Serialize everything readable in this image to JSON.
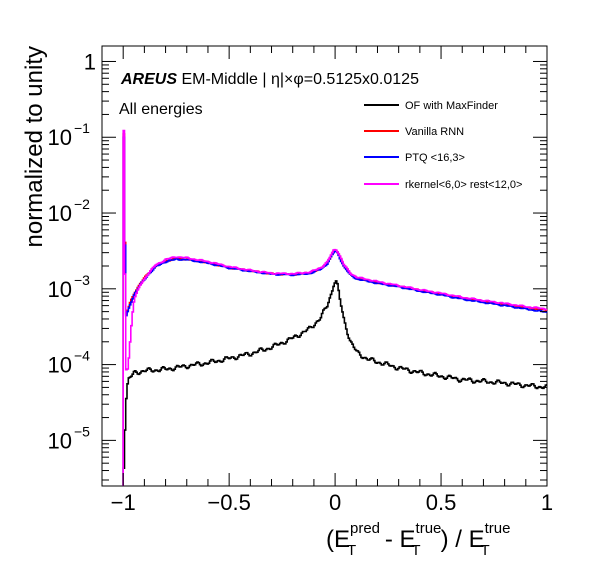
{
  "chart_data": {
    "type": "line",
    "subtype": "step-histogram",
    "title": "",
    "xlabel": "",
    "ylabel": "normalized to unity",
    "x_axis_title": {
      "open": "(E",
      "pred_sup": "pred",
      "t_sub_1": "T",
      "minus": " - E",
      "true_sup_1": "true",
      "t_sub_2": "T",
      "close_div": ") /  E",
      "true_sup_2": "true",
      "t_sub_3": "T"
    },
    "xlim": [
      -1.1,
      1.0
    ],
    "ylim": [
      2.5e-06,
      1.6
    ],
    "yscale": "log",
    "grid": false,
    "legend_position": "top-right",
    "x_ticks": [
      {
        "value": -1,
        "label": "−1"
      },
      {
        "value": -0.5,
        "label": "−0.5"
      },
      {
        "value": 0,
        "label": "0"
      },
      {
        "value": 0.5,
        "label": "0.5"
      },
      {
        "value": 1,
        "label": "1"
      }
    ],
    "y_ticks": [
      {
        "value": 1,
        "base": "1",
        "exp": ""
      },
      {
        "value": 0.1,
        "base": "10",
        "exp": "−1"
      },
      {
        "value": 0.01,
        "base": "10",
        "exp": "−2"
      },
      {
        "value": 0.001,
        "base": "10",
        "exp": "−3"
      },
      {
        "value": 0.0001,
        "base": "10",
        "exp": "−4"
      },
      {
        "value": 1e-05,
        "base": "10",
        "exp": "−5"
      }
    ],
    "annotations": {
      "brand": "AREUS",
      "region": " EM-Middle | η|×φ=0.5125x0.0125",
      "energies": "All energies"
    },
    "series": [
      {
        "name": "OF with MaxFinder",
        "color": "#000000",
        "points": [
          [
            -1.0,
            4.6e-06
          ],
          [
            -0.99,
            3.2e-05
          ],
          [
            -0.98,
            6.2e-05
          ],
          [
            -0.95,
            7.8e-05
          ],
          [
            -0.9,
            8.3e-05
          ],
          [
            -0.8,
            8.7e-05
          ],
          [
            -0.7,
            9.6e-05
          ],
          [
            -0.6,
            0.000106
          ],
          [
            -0.5,
            0.000121
          ],
          [
            -0.4,
            0.00014
          ],
          [
            -0.3,
            0.00017
          ],
          [
            -0.2,
            0.000225
          ],
          [
            -0.12,
            0.0003
          ],
          [
            -0.07,
            0.00042
          ],
          [
            -0.04,
            0.0006
          ],
          [
            -0.02,
            0.00088
          ],
          [
            -0.01,
            0.00115
          ],
          [
            0.0,
            0.0013
          ],
          [
            0.01,
            0.00105
          ],
          [
            0.02,
            0.00072
          ],
          [
            0.04,
            0.00038
          ],
          [
            0.07,
            0.0002
          ],
          [
            0.1,
            0.000145
          ],
          [
            0.15,
            0.000118
          ],
          [
            0.2,
            0.000108
          ],
          [
            0.3,
            9e-05
          ],
          [
            0.4,
            7.8e-05
          ],
          [
            0.5,
            7e-05
          ],
          [
            0.6,
            6.3e-05
          ],
          [
            0.7,
            6e-05
          ],
          [
            0.8,
            5.7e-05
          ],
          [
            0.9,
            5.3e-05
          ],
          [
            1.0,
            5e-05
          ]
        ]
      },
      {
        "name": "Vanilla RNN",
        "color": "#ff0000",
        "points": [
          [
            -1.0,
            0.11
          ],
          [
            -0.99,
            0.00045
          ],
          [
            -0.97,
            0.00065
          ],
          [
            -0.95,
            0.00088
          ],
          [
            -0.92,
            0.0012
          ],
          [
            -0.88,
            0.00165
          ],
          [
            -0.85,
            0.002
          ],
          [
            -0.8,
            0.00235
          ],
          [
            -0.75,
            0.0025
          ],
          [
            -0.7,
            0.00245
          ],
          [
            -0.6,
            0.0022
          ],
          [
            -0.5,
            0.0019
          ],
          [
            -0.4,
            0.00172
          ],
          [
            -0.3,
            0.00158
          ],
          [
            -0.2,
            0.00155
          ],
          [
            -0.12,
            0.00162
          ],
          [
            -0.07,
            0.00185
          ],
          [
            -0.04,
            0.0022
          ],
          [
            -0.02,
            0.00275
          ],
          [
            -0.01,
            0.00305
          ],
          [
            0.0,
            0.0032
          ],
          [
            0.01,
            0.003
          ],
          [
            0.02,
            0.0026
          ],
          [
            0.04,
            0.002
          ],
          [
            0.07,
            0.00155
          ],
          [
            0.1,
            0.00138
          ],
          [
            0.2,
            0.0012
          ],
          [
            0.3,
            0.00108
          ],
          [
            0.4,
            0.00095
          ],
          [
            0.5,
            0.00085
          ],
          [
            0.6,
            0.00075
          ],
          [
            0.7,
            0.00068
          ],
          [
            0.8,
            0.00062
          ],
          [
            0.9,
            0.00056
          ],
          [
            1.0,
            0.00052
          ]
        ]
      },
      {
        "name": "PTQ <16,3>",
        "color": "#0000ff",
        "points": [
          [
            -1.0,
            0.1
          ],
          [
            -0.99,
            0.00042
          ],
          [
            -0.97,
            0.00062
          ],
          [
            -0.95,
            0.00085
          ],
          [
            -0.92,
            0.00115
          ],
          [
            -0.88,
            0.0016
          ],
          [
            -0.85,
            0.00195
          ],
          [
            -0.8,
            0.0023
          ],
          [
            -0.75,
            0.00245
          ],
          [
            -0.7,
            0.00242
          ],
          [
            -0.6,
            0.00218
          ],
          [
            -0.5,
            0.00188
          ],
          [
            -0.4,
            0.0017
          ],
          [
            -0.3,
            0.00156
          ],
          [
            -0.2,
            0.00153
          ],
          [
            -0.12,
            0.0016
          ],
          [
            -0.07,
            0.00182
          ],
          [
            -0.04,
            0.00215
          ],
          [
            -0.02,
            0.0027
          ],
          [
            -0.01,
            0.003
          ],
          [
            0.0,
            0.00315
          ],
          [
            0.01,
            0.00295
          ],
          [
            0.02,
            0.00255
          ],
          [
            0.04,
            0.00195
          ],
          [
            0.07,
            0.00152
          ],
          [
            0.1,
            0.00135
          ],
          [
            0.2,
            0.00118
          ],
          [
            0.3,
            0.00106
          ],
          [
            0.4,
            0.00093
          ],
          [
            0.5,
            0.00083
          ],
          [
            0.6,
            0.00073
          ],
          [
            0.7,
            0.00066
          ],
          [
            0.8,
            0.0006
          ],
          [
            0.9,
            0.00054
          ],
          [
            1.0,
            0.00049
          ]
        ]
      },
      {
        "name": "rkernel<6,0> rest<12,0>",
        "color": "#ff00ff",
        "points": [
          [
            -1.0,
            0.12
          ],
          [
            -0.99,
            8.5e-05
          ],
          [
            -0.98,
            9e-05
          ],
          [
            -0.97,
            0.0002
          ],
          [
            -0.96,
            0.00045
          ],
          [
            -0.95,
            0.00075
          ],
          [
            -0.92,
            0.00115
          ],
          [
            -0.88,
            0.00165
          ],
          [
            -0.85,
            0.00205
          ],
          [
            -0.8,
            0.00245
          ],
          [
            -0.75,
            0.00265
          ],
          [
            -0.7,
            0.00255
          ],
          [
            -0.6,
            0.00228
          ],
          [
            -0.5,
            0.00195
          ],
          [
            -0.4,
            0.00175
          ],
          [
            -0.3,
            0.0016
          ],
          [
            -0.2,
            0.00158
          ],
          [
            -0.12,
            0.00166
          ],
          [
            -0.07,
            0.0019
          ],
          [
            -0.04,
            0.00225
          ],
          [
            -0.02,
            0.00285
          ],
          [
            -0.01,
            0.0032
          ],
          [
            0.0,
            0.00335
          ],
          [
            0.01,
            0.0031
          ],
          [
            0.02,
            0.0027
          ],
          [
            0.04,
            0.00205
          ],
          [
            0.07,
            0.0016
          ],
          [
            0.1,
            0.00142
          ],
          [
            0.2,
            0.00124
          ],
          [
            0.3,
            0.0011
          ],
          [
            0.4,
            0.00097
          ],
          [
            0.5,
            0.00087
          ],
          [
            0.6,
            0.00077
          ],
          [
            0.7,
            0.0007
          ],
          [
            0.8,
            0.00064
          ],
          [
            0.9,
            0.00058
          ],
          [
            1.0,
            0.00054
          ]
        ]
      }
    ]
  }
}
